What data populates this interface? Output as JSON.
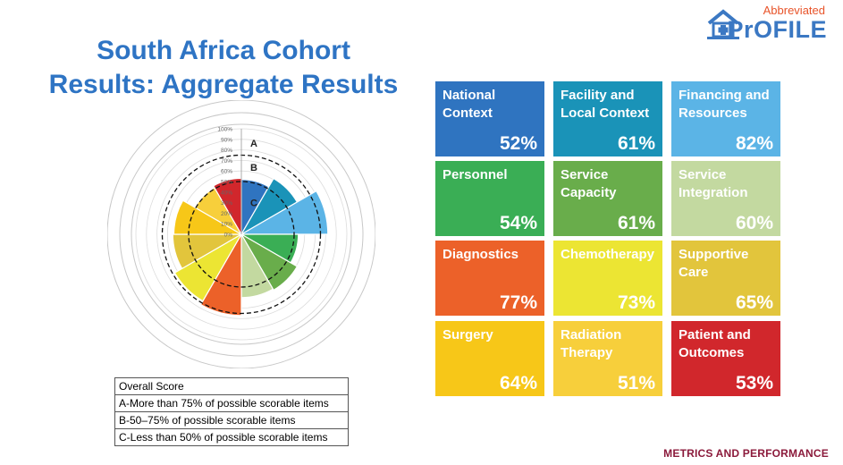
{
  "title": {
    "line1": "South Africa Cohort",
    "line2": "Results: Aggregate Results"
  },
  "logo": {
    "abbreviated": "Abbreviated",
    "word": "PrOFILE"
  },
  "footer": "METRICS AND PERFORMANCE",
  "legend": {
    "header": "Overall Score",
    "rows": [
      "A-More than 75% of possible scorable items",
      "B-50–75% of possible scorable items",
      "C-Less than 50% of possible scorable items"
    ]
  },
  "chart_data": {
    "type": "polar-area",
    "scale_ticks": [
      "100%",
      "90%",
      "80%",
      "70%",
      "60%",
      "50%",
      "40%",
      "30%",
      "20%",
      "10%",
      "0%"
    ],
    "zone_labels": [
      "A",
      "B",
      "C"
    ],
    "thresholds": [
      50,
      75
    ],
    "ylim": [
      0,
      100
    ],
    "segments": [
      {
        "name": "National Context",
        "value": 52,
        "color": "#2f74c0"
      },
      {
        "name": "Facility and Local Context",
        "value": 61,
        "color": "#1a93b8"
      },
      {
        "name": "Financing and Resources",
        "value": 82,
        "color": "#5bb4e6"
      },
      {
        "name": "Personnel",
        "value": 54,
        "color": "#3aae55"
      },
      {
        "name": "Service Capacity",
        "value": 61,
        "color": "#69ad4b"
      },
      {
        "name": "Service Integration",
        "value": 60,
        "color": "#c3d9a0"
      },
      {
        "name": "Diagnostics",
        "value": 77,
        "color": "#ec6129"
      },
      {
        "name": "Chemotherapy",
        "value": 73,
        "color": "#ece533"
      },
      {
        "name": "Supportive Care",
        "value": 65,
        "color": "#e2c53c"
      },
      {
        "name": "Surgery",
        "value": 64,
        "color": "#f7c718"
      },
      {
        "name": "Radiation Therapy",
        "value": 51,
        "color": "#f7cf3b"
      },
      {
        "name": "Patient and Outcomes",
        "value": 53,
        "color": "#d1272c"
      }
    ]
  },
  "tiles": [
    {
      "label": "National Context",
      "value": "52%"
    },
    {
      "label": "Facility and Local Context",
      "value": "61%"
    },
    {
      "label": "Financing and Resources",
      "value": "82%"
    },
    {
      "label": "Personnel",
      "value": "54%"
    },
    {
      "label": "Service Capacity",
      "value": "61%"
    },
    {
      "label": "Service Integration",
      "value": "60%"
    },
    {
      "label": "Diagnostics",
      "value": "77%"
    },
    {
      "label": "Chemotherapy",
      "value": "73%"
    },
    {
      "label": "Supportive Care",
      "value": "65%"
    },
    {
      "label": "Surgery",
      "value": "64%"
    },
    {
      "label": "Radiation Therapy",
      "value": "51%"
    },
    {
      "label": "Patient and Outcomes",
      "value": "53%"
    }
  ]
}
